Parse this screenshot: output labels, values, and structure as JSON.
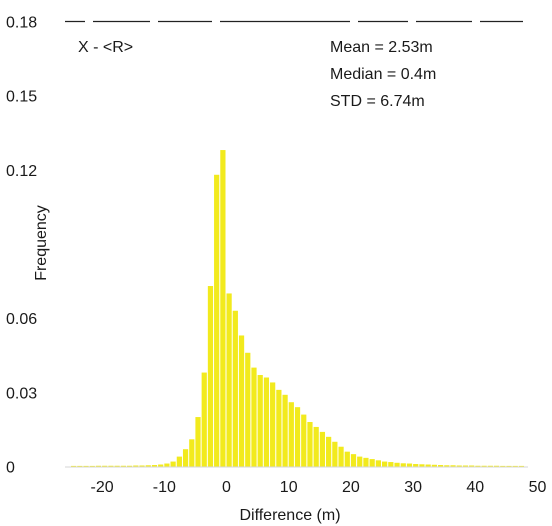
{
  "chart_data": {
    "type": "bar",
    "xlabel": "Difference (m)",
    "ylabel": "Frequency",
    "xlim": [
      -25,
      50
    ],
    "ylim": [
      0,
      0.18
    ],
    "xticks": [
      -20,
      -10,
      0,
      10,
      20,
      30,
      40,
      50
    ],
    "xtick_labels": [
      "-20",
      "-10",
      "0",
      "10",
      "20",
      "30",
      "40",
      "50"
    ],
    "yticks": [
      0,
      0.03,
      0.06,
      0.12,
      0.15,
      0.18
    ],
    "ytick_labels": [
      "0",
      "0.03",
      "0.06",
      "0.12",
      "0.15",
      "0.18"
    ],
    "bar_color": "#f2ea1d",
    "bin_width": 1,
    "bins": [
      {
        "x": -25,
        "y": 0.0002
      },
      {
        "x": -24,
        "y": 0.0002
      },
      {
        "x": -23,
        "y": 0.0002
      },
      {
        "x": -22,
        "y": 0.0002
      },
      {
        "x": -21,
        "y": 0.0003
      },
      {
        "x": -20,
        "y": 0.0003
      },
      {
        "x": -19,
        "y": 0.0003
      },
      {
        "x": -18,
        "y": 0.0003
      },
      {
        "x": -17,
        "y": 0.0003
      },
      {
        "x": -16,
        "y": 0.0003
      },
      {
        "x": -15,
        "y": 0.0004
      },
      {
        "x": -14,
        "y": 0.0004
      },
      {
        "x": -13,
        "y": 0.0005
      },
      {
        "x": -12,
        "y": 0.0006
      },
      {
        "x": -11,
        "y": 0.0008
      },
      {
        "x": -10,
        "y": 0.0012
      },
      {
        "x": -9,
        "y": 0.002
      },
      {
        "x": -8,
        "y": 0.004
      },
      {
        "x": -7,
        "y": 0.007
      },
      {
        "x": -6,
        "y": 0.011
      },
      {
        "x": -5,
        "y": 0.02
      },
      {
        "x": -4,
        "y": 0.038
      },
      {
        "x": -3,
        "y": 0.073
      },
      {
        "x": -2,
        "y": 0.118
      },
      {
        "x": -1,
        "y": 0.128
      },
      {
        "x": 0,
        "y": 0.07
      },
      {
        "x": 1,
        "y": 0.063
      },
      {
        "x": 2,
        "y": 0.053
      },
      {
        "x": 3,
        "y": 0.046
      },
      {
        "x": 4,
        "y": 0.04
      },
      {
        "x": 5,
        "y": 0.037
      },
      {
        "x": 6,
        "y": 0.036
      },
      {
        "x": 7,
        "y": 0.034
      },
      {
        "x": 8,
        "y": 0.031
      },
      {
        "x": 9,
        "y": 0.029
      },
      {
        "x": 10,
        "y": 0.026
      },
      {
        "x": 11,
        "y": 0.024
      },
      {
        "x": 12,
        "y": 0.021
      },
      {
        "x": 13,
        "y": 0.018
      },
      {
        "x": 14,
        "y": 0.016
      },
      {
        "x": 15,
        "y": 0.014
      },
      {
        "x": 16,
        "y": 0.012
      },
      {
        "x": 17,
        "y": 0.01
      },
      {
        "x": 18,
        "y": 0.008
      },
      {
        "x": 19,
        "y": 0.006
      },
      {
        "x": 20,
        "y": 0.005
      },
      {
        "x": 21,
        "y": 0.004
      },
      {
        "x": 22,
        "y": 0.0035
      },
      {
        "x": 23,
        "y": 0.003
      },
      {
        "x": 24,
        "y": 0.0025
      },
      {
        "x": 25,
        "y": 0.002
      },
      {
        "x": 26,
        "y": 0.0018
      },
      {
        "x": 27,
        "y": 0.0015
      },
      {
        "x": 28,
        "y": 0.0013
      },
      {
        "x": 29,
        "y": 0.0012
      },
      {
        "x": 30,
        "y": 0.001
      },
      {
        "x": 31,
        "y": 0.0009
      },
      {
        "x": 32,
        "y": 0.0008
      },
      {
        "x": 33,
        "y": 0.0007
      },
      {
        "x": 34,
        "y": 0.0006
      },
      {
        "x": 35,
        "y": 0.0005
      },
      {
        "x": 36,
        "y": 0.0005
      },
      {
        "x": 37,
        "y": 0.0004
      },
      {
        "x": 38,
        "y": 0.0004
      },
      {
        "x": 39,
        "y": 0.0004
      },
      {
        "x": 40,
        "y": 0.0003
      },
      {
        "x": 41,
        "y": 0.0003
      },
      {
        "x": 42,
        "y": 0.0003
      },
      {
        "x": 43,
        "y": 0.0003
      },
      {
        "x": 44,
        "y": 0.0002
      },
      {
        "x": 45,
        "y": 0.0002
      },
      {
        "x": 46,
        "y": 0.0002
      },
      {
        "x": 47,
        "y": 0.0002
      }
    ],
    "annotations": {
      "label": "X - <R>",
      "mean": "Mean = 2.53m",
      "median": "Median = 0.4m",
      "std": "STD = 6.74m"
    }
  }
}
